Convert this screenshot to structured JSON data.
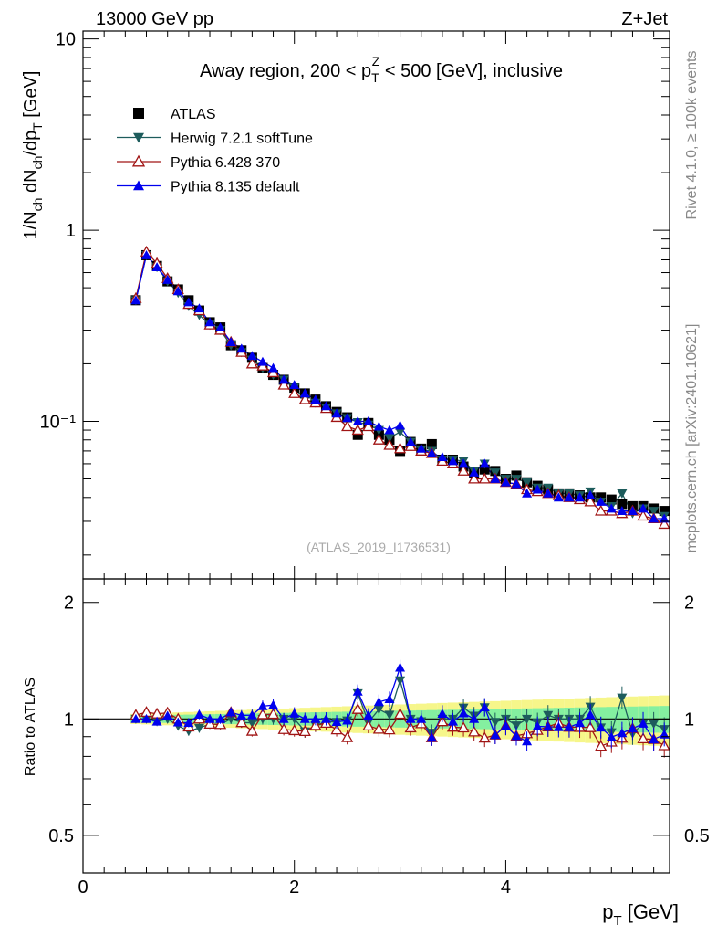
{
  "header": {
    "left": "13000 GeV pp",
    "right": "Z+Jet"
  },
  "side_labels": {
    "rivet": "Rivet 4.1.0, ≥ 100k events",
    "mcplots": "mcplots.cern.ch [arXiv:2401.10621]"
  },
  "chart_data": {
    "type": "scatter",
    "title": "Away region, 200 < p_T^Z < 500 [GeV], inclusive",
    "title_parts": {
      "pre": "Away region, 200 < p",
      "sub": "T",
      "sup": "Z",
      "post": " < 500 [GeV], inclusive"
    },
    "watermark": "(ATLAS_2019_I1736531)",
    "ylabel": "1/N_ch dN_ch/dp_T [GeV]",
    "ylabel_parts": {
      "a": "1/N",
      "a_sub": "ch",
      "b": " dN",
      "b_sub": "ch",
      "c": "/dp",
      "c_sub": "T",
      "d": " [GeV]"
    },
    "xlabel": "p_T [GeV]",
    "xlabel_parts": {
      "a": "p",
      "a_sub": "T",
      "b": " [GeV]"
    },
    "ratio_ylabel": "Ratio to ATLAS",
    "xlim": [
      0,
      5.55
    ],
    "ylim": [
      0.015,
      11
    ],
    "ratio_ylim": [
      0.4,
      2.3
    ],
    "yscale": "log",
    "ratio_yscale": "log",
    "x_ticks": [
      0,
      2,
      4
    ],
    "x_tick_labels": [
      "0",
      "2",
      "4"
    ],
    "y_ticks": [
      0.1,
      1,
      10
    ],
    "y_tick_labels": [
      "10⁻¹",
      "1",
      "10"
    ],
    "ratio_ticks": [
      0.5,
      1,
      2
    ],
    "ratio_tick_labels": [
      "0.5",
      "1",
      "2"
    ],
    "legend": [
      "ATLAS",
      "Herwig 7.2.1 softTune",
      "Pythia 6.428 370",
      "Pythia 8.135 default"
    ],
    "legend_position": "top-left",
    "colors": {
      "atlas": "#000000",
      "herwig": "#1d5c5c",
      "pythia6": "#a01414",
      "pythia8": "#0000ee",
      "band_inner": "#84f0a0",
      "band_outer": "#f6f68a"
    },
    "x": [
      0.5,
      0.6,
      0.7,
      0.8,
      0.9,
      1.0,
      1.1,
      1.2,
      1.3,
      1.4,
      1.5,
      1.6,
      1.7,
      1.8,
      1.9,
      2.0,
      2.1,
      2.2,
      2.3,
      2.4,
      2.5,
      2.6,
      2.7,
      2.8,
      2.9,
      3.0,
      3.1,
      3.2,
      3.3,
      3.4,
      3.5,
      3.6,
      3.7,
      3.8,
      3.9,
      4.0,
      4.1,
      4.2,
      4.3,
      4.4,
      4.5,
      4.6,
      4.7,
      4.8,
      4.9,
      5.0,
      5.1,
      5.2,
      5.3,
      5.4,
      5.5
    ],
    "series": [
      {
        "name": "ATLAS",
        "marker": "square",
        "values": [
          0.43,
          0.74,
          0.65,
          0.54,
          0.49,
          0.43,
          0.38,
          0.33,
          0.31,
          0.25,
          0.235,
          0.215,
          0.19,
          0.175,
          0.165,
          0.15,
          0.14,
          0.13,
          0.12,
          0.112,
          0.105,
          0.085,
          0.098,
          0.085,
          0.08,
          0.07,
          0.078,
          0.072,
          0.076,
          0.063,
          0.063,
          0.058,
          0.054,
          0.056,
          0.055,
          0.05,
          0.052,
          0.048,
          0.046,
          0.044,
          0.042,
          0.042,
          0.041,
          0.04,
          0.04,
          0.039,
          0.037,
          0.036,
          0.036,
          0.035,
          0.034
        ]
      },
      {
        "name": "Herwig 7.2.1 softTune",
        "marker": "triangle-down",
        "values": [
          0.43,
          0.74,
          0.64,
          0.54,
          0.47,
          0.4,
          0.36,
          0.32,
          0.3,
          0.25,
          0.23,
          0.21,
          0.19,
          0.175,
          0.165,
          0.15,
          0.13,
          0.125,
          0.118,
          0.11,
          0.104,
          0.099,
          0.096,
          0.09,
          0.082,
          0.088,
          0.078,
          0.071,
          0.07,
          0.063,
          0.063,
          0.062,
          0.055,
          0.06,
          0.054,
          0.05,
          0.05,
          0.048,
          0.045,
          0.045,
          0.042,
          0.042,
          0.041,
          0.043,
          0.038,
          0.036,
          0.042,
          0.033,
          0.035,
          0.034,
          0.032
        ]
      },
      {
        "name": "Pythia 6.428 370",
        "marker": "triangle-up-open",
        "values": [
          0.44,
          0.77,
          0.67,
          0.56,
          0.49,
          0.41,
          0.38,
          0.32,
          0.3,
          0.26,
          0.23,
          0.2,
          0.195,
          0.18,
          0.155,
          0.14,
          0.13,
          0.125,
          0.117,
          0.105,
          0.094,
          0.09,
          0.094,
          0.08,
          0.075,
          0.072,
          0.074,
          0.07,
          0.068,
          0.062,
          0.06,
          0.055,
          0.05,
          0.05,
          0.05,
          0.048,
          0.047,
          0.044,
          0.043,
          0.042,
          0.041,
          0.04,
          0.039,
          0.038,
          0.034,
          0.034,
          0.033,
          0.034,
          0.032,
          0.031,
          0.029
        ]
      },
      {
        "name": "Pythia 8.135 default",
        "marker": "triangle-up",
        "values": [
          0.43,
          0.74,
          0.64,
          0.55,
          0.48,
          0.42,
          0.39,
          0.33,
          0.31,
          0.26,
          0.24,
          0.22,
          0.205,
          0.19,
          0.165,
          0.155,
          0.14,
          0.13,
          0.12,
          0.11,
          0.104,
          0.1,
          0.1,
          0.094,
          0.09,
          0.095,
          0.078,
          0.072,
          0.068,
          0.065,
          0.062,
          0.06,
          0.054,
          0.06,
          0.05,
          0.048,
          0.047,
          0.042,
          0.044,
          0.042,
          0.04,
          0.04,
          0.04,
          0.041,
          0.038,
          0.035,
          0.034,
          0.034,
          0.035,
          0.031,
          0.031
        ]
      }
    ]
  }
}
